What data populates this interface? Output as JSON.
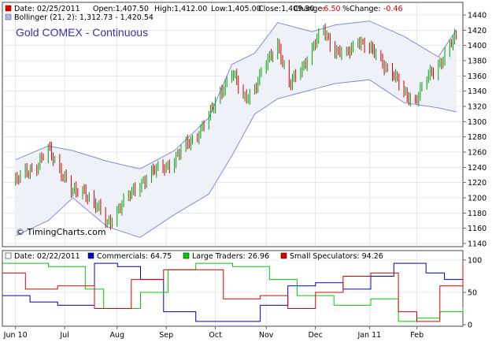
{
  "title": "Gold COMEX - Continuous",
  "credit": "© TimingCharts.com",
  "price_legend": {
    "date": "Date: 02/25/2011",
    "open": "Open:1,407.50",
    "high": "High:1,412.00",
    "low": "Low:1,405.00",
    "close": "Close:1,409.30",
    "change_label": "Change:",
    "change_value": "-6.50",
    "pct_label": "%Change:",
    "pct_value": "-0.46",
    "bollinger": "Bollinger (21, 2): 1,312.73 - 1,420.54"
  },
  "cot_legend": {
    "date": "Date: 02/22/2011",
    "commercials": "Commercials: 64.75",
    "large": "Large Traders: 26.96",
    "small": "Small Speculators: 94.26"
  },
  "colors": {
    "up": "#00a000",
    "down": "#cc0000",
    "band": "#8888dd",
    "band_fill": "#eef2f8",
    "commercials": "#0000cc",
    "large": "#00cc00",
    "small": "#dd0000",
    "title": "#3333aa"
  },
  "chart_data": [
    {
      "type": "candlestick",
      "title": "Gold COMEX - Continuous",
      "y_ticks": [
        "1440",
        "1420",
        "1400",
        "1380",
        "1360",
        "1340",
        "1320",
        "1300",
        "1280",
        "1260",
        "1240",
        "1220",
        "1200",
        "1180",
        "1160",
        "1140"
      ],
      "ylim": [
        1140,
        1440
      ],
      "x_ticks": [
        "Jun 10",
        "Jul",
        "Aug",
        "Sep",
        "Oct",
        "Nov",
        "Dec",
        "Jan 11",
        "Feb"
      ],
      "close_path": [
        [
          "2010-06-01",
          1220
        ],
        [
          "2010-06-08",
          1235
        ],
        [
          "2010-06-15",
          1245
        ],
        [
          "2010-06-21",
          1262
        ],
        [
          "2010-06-28",
          1240
        ],
        [
          "2010-07-06",
          1205
        ],
        [
          "2010-07-13",
          1210
        ],
        [
          "2010-07-20",
          1190
        ],
        [
          "2010-07-27",
          1165
        ],
        [
          "2010-08-02",
          1185
        ],
        [
          "2010-08-09",
          1200
        ],
        [
          "2010-08-16",
          1220
        ],
        [
          "2010-08-23",
          1232
        ],
        [
          "2010-08-30",
          1240
        ],
        [
          "2010-09-06",
          1250
        ],
        [
          "2010-09-13",
          1268
        ],
        [
          "2010-09-20",
          1285
        ],
        [
          "2010-09-27",
          1305
        ],
        [
          "2010-10-04",
          1340
        ],
        [
          "2010-10-11",
          1365
        ],
        [
          "2010-10-18",
          1330
        ],
        [
          "2010-10-25",
          1345
        ],
        [
          "2010-11-01",
          1375
        ],
        [
          "2010-11-08",
          1405
        ],
        [
          "2010-11-15",
          1345
        ],
        [
          "2010-11-22",
          1370
        ],
        [
          "2010-11-29",
          1395
        ],
        [
          "2010-12-06",
          1420
        ],
        [
          "2010-12-13",
          1395
        ],
        [
          "2010-12-20",
          1385
        ],
        [
          "2010-12-27",
          1410
        ],
        [
          "2011-01-03",
          1395
        ],
        [
          "2011-01-10",
          1380
        ],
        [
          "2011-01-17",
          1365
        ],
        [
          "2011-01-24",
          1335
        ],
        [
          "2011-01-31",
          1330
        ],
        [
          "2011-02-07",
          1355
        ],
        [
          "2011-02-14",
          1375
        ],
        [
          "2011-02-21",
          1400
        ],
        [
          "2011-02-25",
          1409.3
        ]
      ],
      "bollinger_upper": [
        [
          "2010-06-01",
          1250
        ],
        [
          "2010-06-21",
          1268
        ],
        [
          "2010-07-06",
          1262
        ],
        [
          "2010-07-27",
          1248
        ],
        [
          "2010-08-16",
          1238
        ],
        [
          "2010-09-06",
          1262
        ],
        [
          "2010-09-27",
          1305
        ],
        [
          "2010-10-11",
          1375
        ],
        [
          "2010-10-25",
          1390
        ],
        [
          "2010-11-08",
          1430
        ],
        [
          "2010-11-29",
          1418
        ],
        [
          "2010-12-13",
          1427
        ],
        [
          "2011-01-03",
          1432
        ],
        [
          "2011-01-24",
          1412
        ],
        [
          "2011-02-14",
          1385
        ],
        [
          "2011-02-25",
          1420.54
        ]
      ],
      "bollinger_lower": [
        [
          "2010-06-01",
          1150
        ],
        [
          "2010-06-21",
          1170
        ],
        [
          "2010-07-06",
          1200
        ],
        [
          "2010-07-27",
          1162
        ],
        [
          "2010-08-16",
          1148
        ],
        [
          "2010-09-06",
          1178
        ],
        [
          "2010-09-27",
          1205
        ],
        [
          "2010-10-11",
          1255
        ],
        [
          "2010-10-25",
          1310
        ],
        [
          "2010-11-08",
          1330
        ],
        [
          "2010-11-29",
          1342
        ],
        [
          "2010-12-13",
          1350
        ],
        [
          "2011-01-03",
          1355
        ],
        [
          "2011-01-24",
          1325
        ],
        [
          "2011-02-14",
          1318
        ],
        [
          "2011-02-25",
          1312.73
        ]
      ]
    },
    {
      "type": "line",
      "y_ticks": [
        "100",
        "50",
        "0"
      ],
      "ylim": [
        0,
        100
      ],
      "series": [
        {
          "name": "Commercials",
          "values": [
            [
              0,
              45
            ],
            [
              0.06,
              35
            ],
            [
              0.12,
              30
            ],
            [
              0.2,
              95
            ],
            [
              0.25,
              90
            ],
            [
              0.3,
              70
            ],
            [
              0.35,
              20
            ],
            [
              0.42,
              5
            ],
            [
              0.5,
              5
            ],
            [
              0.56,
              30
            ],
            [
              0.62,
              60
            ],
            [
              0.68,
              65
            ],
            [
              0.74,
              55
            ],
            [
              0.8,
              75
            ],
            [
              0.85,
              95
            ],
            [
              0.92,
              80
            ],
            [
              0.96,
              70
            ],
            [
              1.0,
              64.75
            ]
          ]
        },
        {
          "name": "Large Traders",
          "values": [
            [
              0,
              95
            ],
            [
              0.1,
              90
            ],
            [
              0.18,
              55
            ],
            [
              0.22,
              25
            ],
            [
              0.3,
              50
            ],
            [
              0.36,
              85
            ],
            [
              0.42,
              95
            ],
            [
              0.5,
              90
            ],
            [
              0.58,
              70
            ],
            [
              0.64,
              45
            ],
            [
              0.72,
              30
            ],
            [
              0.8,
              40
            ],
            [
              0.86,
              5
            ],
            [
              0.9,
              10
            ],
            [
              0.95,
              20
            ],
            [
              1.0,
              26.96
            ]
          ]
        },
        {
          "name": "Small Speculators",
          "values": [
            [
              0,
              80
            ],
            [
              0.05,
              55
            ],
            [
              0.12,
              60
            ],
            [
              0.2,
              25
            ],
            [
              0.28,
              70
            ],
            [
              0.35,
              85
            ],
            [
              0.42,
              85
            ],
            [
              0.48,
              40
            ],
            [
              0.56,
              45
            ],
            [
              0.62,
              25
            ],
            [
              0.68,
              50
            ],
            [
              0.74,
              75
            ],
            [
              0.8,
              80
            ],
            [
              0.86,
              20
            ],
            [
              0.9,
              5
            ],
            [
              0.95,
              60
            ],
            [
              1.0,
              94.26
            ]
          ]
        }
      ]
    }
  ]
}
